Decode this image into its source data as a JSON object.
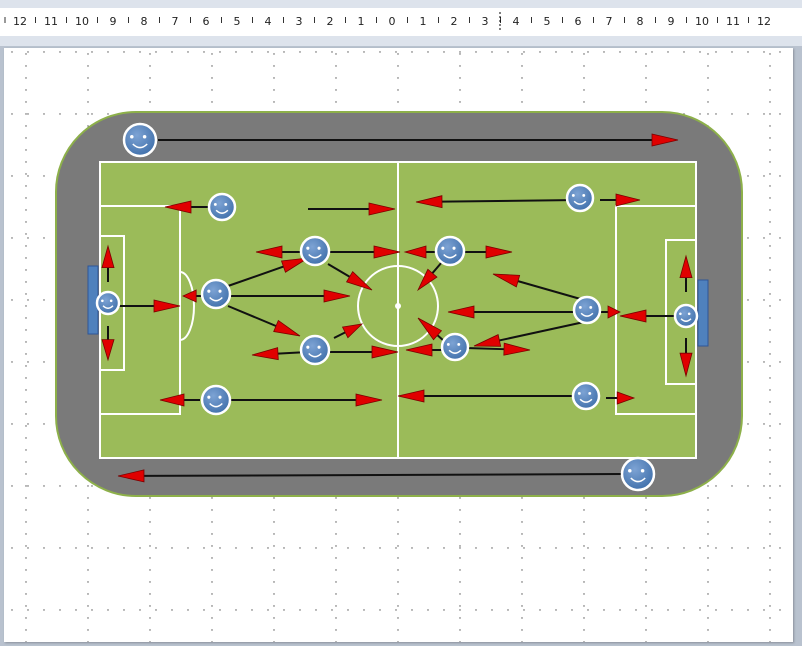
{
  "ruler": {
    "labels": [
      "12",
      "11",
      "10",
      "9",
      "8",
      "7",
      "6",
      "5",
      "4",
      "3",
      "2",
      "1",
      "0",
      "1",
      "2",
      "3",
      "4",
      "5",
      "6",
      "7",
      "8",
      "9",
      "10",
      "11",
      "12"
    ]
  },
  "colors": {
    "track": "#7a7a7a",
    "track_border": "#8db04a",
    "pitch": "#9bbb59",
    "lines": "#ffffff",
    "player": "#4f81bd",
    "arrow_head": "#e00000",
    "arrow_line": "#111111",
    "goal": "#4f81bd"
  },
  "icons": {
    "player": "smiley-face-icon",
    "movement": "arrow-icon"
  }
}
